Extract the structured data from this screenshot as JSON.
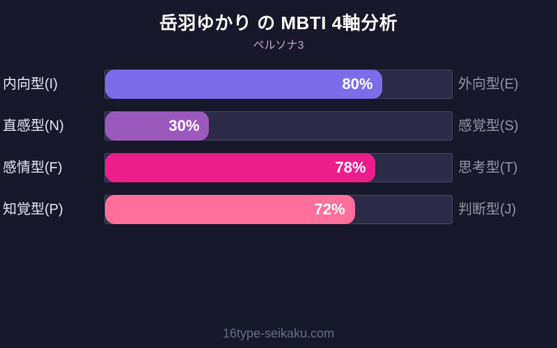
{
  "header": {
    "title": "岳羽ゆかり の MBTI 4軸分析",
    "subtitle": "ペルソナ3"
  },
  "chart_data": {
    "type": "bar",
    "orientation": "horizontal",
    "title": "岳羽ゆかり の MBTI 4軸分析",
    "subtitle": "ペルソナ3",
    "xlim": [
      0,
      100
    ],
    "grid": false,
    "legend": false,
    "rows": [
      {
        "left_label": "内向型(I)",
        "right_label": "外向型(E)",
        "value": 80,
        "value_label": "80%",
        "color": "#7c6cea"
      },
      {
        "left_label": "直感型(N)",
        "right_label": "感覚型(S)",
        "value": 30,
        "value_label": "30%",
        "color": "#9c59bc"
      },
      {
        "left_label": "感情型(F)",
        "right_label": "思考型(T)",
        "value": 78,
        "value_label": "78%",
        "color": "#ec1e8c"
      },
      {
        "left_label": "知覚型(P)",
        "right_label": "判断型(J)",
        "value": 72,
        "value_label": "72%",
        "color": "#ff6f9c"
      }
    ]
  },
  "colors": {
    "background": "#171829",
    "track": "#2b2b47",
    "track_border": "#4a4a68",
    "title_text": "#ffffff",
    "subtitle_text": "#c7a2c6",
    "left_label_text": "#e9e9f2",
    "right_label_text": "#9595a6",
    "footer_text": "#666b85"
  },
  "footer": {
    "site_label": "16type-seikaku.com"
  }
}
